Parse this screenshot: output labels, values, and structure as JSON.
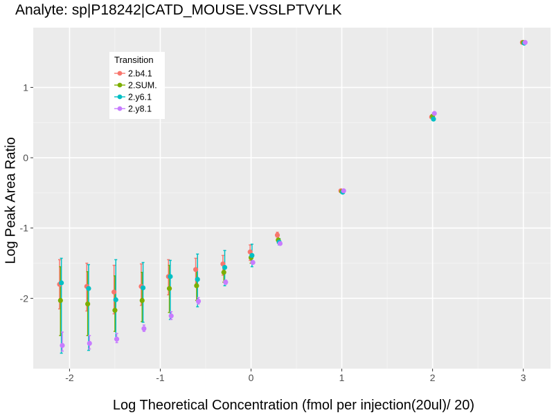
{
  "chart_data": {
    "type": "scatter",
    "title": "Analyte: sp|P18242|CATD_MOUSE.VSSLPTVYLK",
    "xlabel": "Log Theoretical Concentration (fmol per injection(20ul)/ 20)",
    "ylabel": "Log Peak Area Ratio",
    "xlim": [
      -2.4,
      3.3
    ],
    "ylim": [
      -3.0,
      1.85
    ],
    "x_ticks": [
      -2,
      -1,
      0,
      1,
      2,
      3
    ],
    "x_tick_labels": [
      "-2",
      "-1",
      "0",
      "1",
      "2",
      "3"
    ],
    "y_ticks": [
      -2,
      -1,
      0,
      1
    ],
    "y_tick_labels": [
      "-2",
      "-1",
      "0",
      "1"
    ],
    "legend": {
      "title": "Transition",
      "position": "top-left"
    },
    "series": [
      {
        "name": "2.b4.1",
        "color": "#F8766D",
        "x": [
          -2.11,
          -1.81,
          -1.51,
          -1.21,
          -0.91,
          -0.61,
          -0.31,
          -0.01,
          0.29,
          0.99,
          1.99,
          2.99
        ],
        "y": [
          -1.8,
          -1.83,
          -1.91,
          -1.83,
          -1.69,
          -1.59,
          -1.51,
          -1.34,
          -1.1,
          -0.47,
          0.58,
          1.64
        ],
        "err_low": [
          -2.15,
          -2.18,
          -2.22,
          -2.1,
          -1.95,
          -1.82,
          -1.67,
          -1.46,
          -1.13,
          null,
          null,
          null
        ],
        "err_high": [
          -1.45,
          -1.5,
          -1.53,
          -1.51,
          -1.45,
          -1.43,
          -1.39,
          -1.24,
          -1.06,
          null,
          null,
          null
        ]
      },
      {
        "name": "2.SUM.",
        "color": "#7CAE00",
        "x": [
          -2.1,
          -1.8,
          -1.5,
          -1.2,
          -0.9,
          -0.6,
          -0.3,
          0.0,
          0.3,
          1.0,
          2.0,
          3.0
        ],
        "y": [
          -2.03,
          -2.08,
          -2.17,
          -2.03,
          -1.86,
          -1.82,
          -1.63,
          -1.42,
          -1.17,
          -0.48,
          0.59,
          1.64
        ],
        "err_low": [
          -2.53,
          -2.53,
          -2.47,
          -2.33,
          -2.2,
          -2.03,
          -1.77,
          -1.5,
          -1.21,
          null,
          null,
          null
        ],
        "err_high": [
          -1.55,
          -1.62,
          -1.68,
          -1.63,
          -1.53,
          -1.58,
          -1.5,
          -1.33,
          -1.11,
          null,
          null,
          null
        ]
      },
      {
        "name": "2.y6.1",
        "color": "#00BFC4",
        "x": [
          -2.09,
          -1.79,
          -1.49,
          -1.19,
          -0.89,
          -0.59,
          -0.29,
          0.01,
          0.31,
          1.01,
          2.01,
          3.01
        ],
        "y": [
          -1.78,
          -1.86,
          -2.02,
          -1.85,
          -1.69,
          -1.73,
          -1.56,
          -1.39,
          -1.2,
          -0.49,
          0.55,
          1.63
        ],
        "err_low": [
          -2.78,
          -2.74,
          -2.58,
          -2.34,
          -2.3,
          -2.12,
          -1.82,
          -1.55,
          -1.24,
          null,
          null,
          null
        ],
        "err_high": [
          -1.43,
          -1.52,
          -1.45,
          -1.49,
          -1.46,
          -1.37,
          -1.32,
          -1.23,
          -1.15,
          null,
          null,
          null
        ]
      },
      {
        "name": "2.y8.1",
        "color": "#C77CFF",
        "x": [
          -2.08,
          -1.78,
          -1.48,
          -1.18,
          -0.88,
          -0.58,
          -0.28,
          0.02,
          0.32,
          1.02,
          2.02,
          3.02
        ],
        "y": [
          -2.67,
          -2.64,
          -2.58,
          -2.43,
          -2.25,
          -2.04,
          -1.77,
          -1.49,
          -1.22,
          -0.47,
          0.63,
          1.64
        ],
        "err_low": [
          -2.75,
          -2.72,
          -2.63,
          -2.47,
          -2.3,
          -2.08,
          -1.8,
          -1.51,
          -1.24,
          null,
          null,
          null
        ],
        "err_high": [
          -2.48,
          -2.53,
          -2.5,
          -2.38,
          -2.19,
          -1.99,
          -1.74,
          -1.47,
          -1.2,
          null,
          null,
          null
        ]
      }
    ]
  }
}
